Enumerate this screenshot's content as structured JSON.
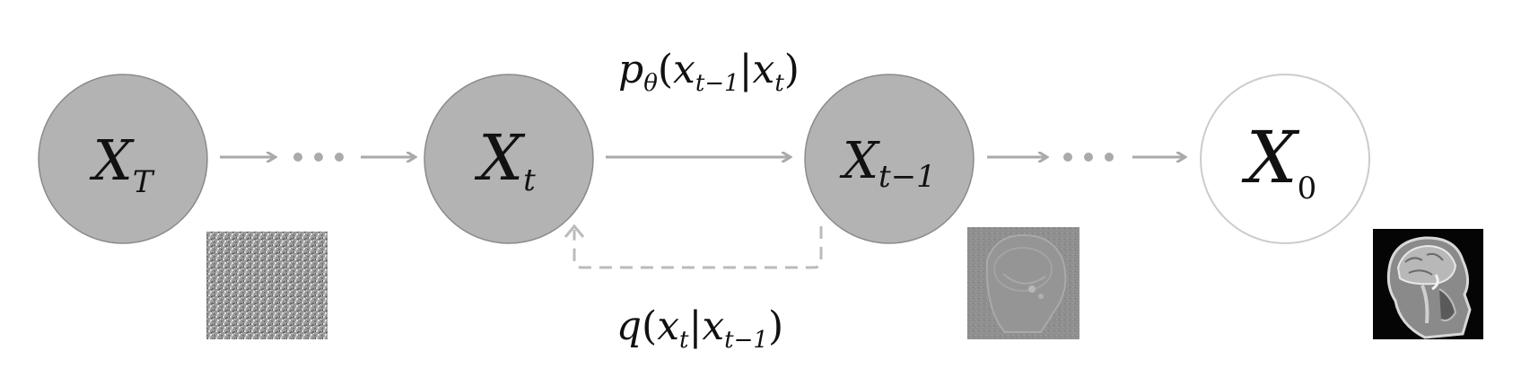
{
  "nodes": [
    {
      "id": "xT",
      "base": "X",
      "sub": "T",
      "sub_upright": false,
      "fill": "#b3b3b3",
      "stroke": "#8a8a8a"
    },
    {
      "id": "xt",
      "base": "X",
      "sub": "t",
      "sub_upright": false,
      "fill": "#b3b3b3",
      "stroke": "#8a8a8a"
    },
    {
      "id": "xt1",
      "base": "X",
      "sub": "t−1",
      "sub_upright": false,
      "fill": "#b3b3b3",
      "stroke": "#8a8a8a"
    },
    {
      "id": "x0",
      "base": "X",
      "sub": "0",
      "sub_upright": true,
      "fill": "#ffffff",
      "stroke": "#cccccc"
    }
  ],
  "reverse_process_label": {
    "p": "p",
    "theta": "θ",
    "x1": "x",
    "sub1": "t−1",
    "bar": "|",
    "x2": "x",
    "sub2": "t"
  },
  "forward_process_label": {
    "q": "q",
    "x1": "x",
    "sub1": "t",
    "bar": "|",
    "x2": "x",
    "sub2": "t−1"
  },
  "images": {
    "noise": "pure noise sample",
    "partial": "partially denoised MRI",
    "mri": "sagittal brain MRI"
  },
  "colors": {
    "arrow": "#aaaaaa",
    "node_dark": "#b3b3b3",
    "node_light": "#ffffff"
  }
}
